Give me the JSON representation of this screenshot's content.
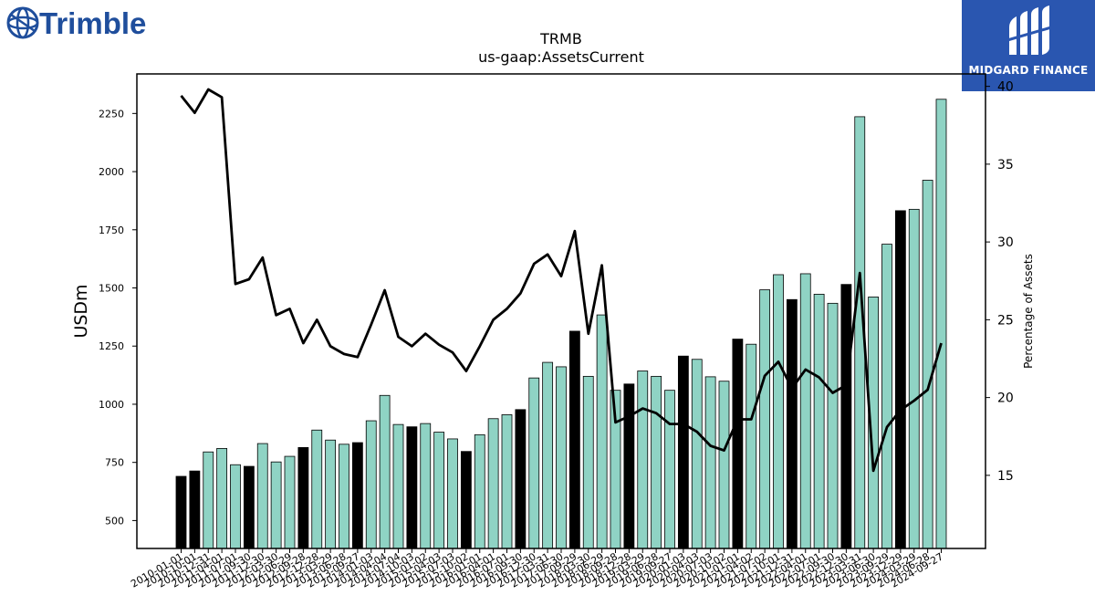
{
  "logos": {
    "left": "Trimble",
    "right": "MIDGARD FINANCE"
  },
  "chart_data": {
    "type": "bar",
    "title": "TRMB",
    "subtitle": "us-gaap:AssetsCurrent",
    "ylabel": "USDm",
    "y2label": "Percentage of Assets",
    "ylim": [
      380,
      2420
    ],
    "y2lim": [
      10.3,
      40.8
    ],
    "yticks": [
      500,
      750,
      1000,
      1250,
      1500,
      1750,
      2000,
      2250
    ],
    "y2ticks": [
      15,
      20,
      25,
      30,
      35,
      40
    ],
    "colors": {
      "quarter": "#8fd3c4",
      "fiscal_year": "#000000",
      "line": "#000000",
      "edge": "#000000"
    },
    "categories": [
      "2010-01-01",
      "2010-10-01",
      "2010-12-31",
      "2011-04-01",
      "2011-07-01",
      "2011-09-30",
      "2011-12-30",
      "2012-03-30",
      "2012-06-29",
      "2012-09-28",
      "2012-12-28",
      "2013-03-29",
      "2013-06-28",
      "2013-09-27",
      "2014-01-03",
      "2014-04-04",
      "2014-07-04",
      "2014-10-03",
      "2015-01-02",
      "2015-04-03",
      "2015-07-03",
      "2015-10-02",
      "2016-01-01",
      "2016-04-01",
      "2016-07-01",
      "2016-09-30",
      "2016-12-30",
      "2017-03-31",
      "2017-06-30",
      "2017-09-29",
      "2018-03-30",
      "2018-06-29",
      "2018-09-28",
      "2018-12-28",
      "2019-03-29",
      "2019-06-28",
      "2019-09-27",
      "2020-01-03",
      "2020-04-03",
      "2020-07-03",
      "2020-10-02",
      "2021-01-01",
      "2021-04-02",
      "2021-07-02",
      "2021-10-01",
      "2021-12-31",
      "2022-04-01",
      "2022-07-01",
      "2022-09-30",
      "2022-12-30",
      "2023-03-31",
      "2023-06-30",
      "2023-09-29",
      "2023-12-29",
      "2024-03-29",
      "2024-06-28",
      "2024-09-27"
    ],
    "values": [
      690,
      713,
      795,
      810,
      740,
      733,
      831,
      752,
      776,
      814,
      889,
      846,
      828,
      835,
      929,
      1038,
      913,
      903,
      917,
      880,
      851,
      797,
      869,
      938,
      955,
      977,
      1113,
      1180,
      1161,
      1314,
      1120,
      1384,
      1060,
      1087,
      1143,
      1120,
      1060,
      1207,
      1193,
      1118,
      1099,
      1280,
      1258,
      1492,
      1557,
      1450,
      1561,
      1473,
      1434,
      1515,
      2236,
      1461,
      1688,
      1832,
      1838,
      1963,
      2311
    ],
    "is_fiscal_year_end": [
      1,
      1,
      0,
      0,
      0,
      1,
      0,
      0,
      0,
      1,
      0,
      0,
      0,
      1,
      0,
      0,
      0,
      1,
      0,
      0,
      0,
      1,
      0,
      0,
      0,
      1,
      0,
      0,
      0,
      1,
      0,
      0,
      0,
      1,
      0,
      0,
      0,
      1,
      0,
      0,
      0,
      1,
      0,
      0,
      0,
      1,
      0,
      0,
      0,
      1,
      0,
      0,
      0,
      1,
      0,
      0,
      0
    ],
    "line": {
      "name": "Percentage of Assets",
      "values": [
        39.4,
        38.3,
        39.8,
        39.3,
        27.3,
        27.6,
        29.0,
        25.3,
        25.7,
        23.5,
        25.0,
        23.3,
        22.8,
        22.6,
        24.7,
        26.9,
        23.9,
        23.3,
        24.1,
        23.4,
        22.9,
        21.7,
        23.3,
        25.0,
        25.7,
        26.7,
        28.6,
        29.2,
        27.8,
        30.7,
        24.1,
        28.5,
        18.4,
        18.8,
        19.3,
        19.0,
        18.3,
        18.3,
        17.8,
        16.9,
        16.6,
        18.6,
        18.6,
        21.4,
        22.3,
        20.6,
        21.8,
        21.3,
        20.3,
        20.8,
        28.0,
        15.3,
        18.1,
        19.2,
        19.8,
        20.5,
        23.5
      ]
    }
  }
}
